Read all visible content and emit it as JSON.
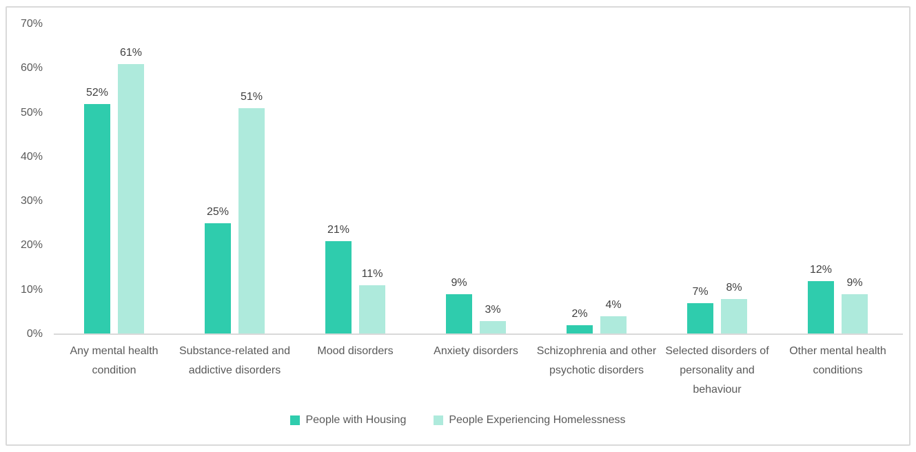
{
  "chart_data": {
    "type": "bar",
    "categories": [
      "Any mental health condition",
      "Substance-related and addictive disorders",
      "Mood disorders",
      "Anxiety disorders",
      "Schizophrenia and other psychotic disorders",
      "Selected disorders of personality and behaviour",
      "Other mental health conditions"
    ],
    "series": [
      {
        "name": "People with Housing",
        "color": "#2FCCAD",
        "values": [
          52,
          25,
          21,
          9,
          2,
          7,
          12
        ]
      },
      {
        "name": "People Experiencing Homelessness",
        "color": "#AEEADC",
        "values": [
          61,
          51,
          11,
          3,
          4,
          8,
          9
        ]
      }
    ],
    "title": "",
    "xlabel": "",
    "ylabel": "",
    "ylim": [
      0,
      70
    ],
    "ytick_step": 10,
    "ytick_labels": [
      "0%",
      "10%",
      "20%",
      "30%",
      "40%",
      "50%",
      "60%",
      "70%"
    ],
    "value_suffix": "%",
    "grid": false,
    "legend_position": "bottom"
  },
  "colors": {
    "background": "#FFFFFF",
    "frame_border": "#D9D9D9",
    "axis_line": "#D9D9D9",
    "tick_label": "#595959",
    "category_label": "#595959",
    "data_label": "#404040",
    "legend_label": "#595959"
  }
}
